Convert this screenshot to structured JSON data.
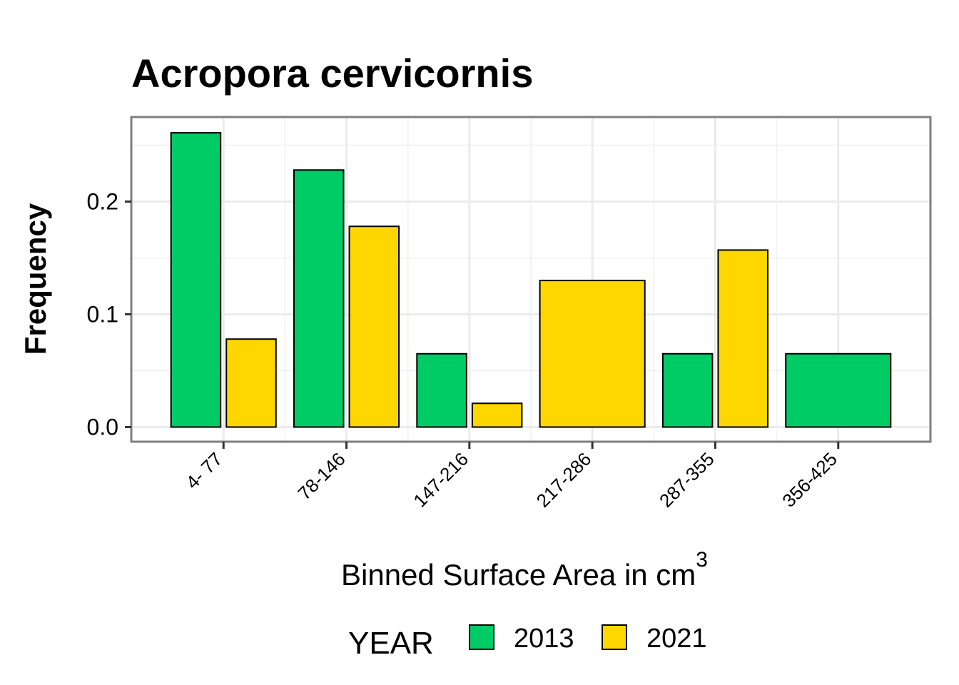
{
  "chart_data": {
    "type": "bar",
    "title": "Acropora cervicornis",
    "xlabel": "Binned Surface Area in cm",
    "xlabel_superscript": "3",
    "ylabel": "Frequency",
    "ylim": [
      -0.013,
      0.275
    ],
    "yticks": [
      0.0,
      0.1,
      0.2
    ],
    "ytick_labels": [
      "0.0",
      "0.1",
      "0.2"
    ],
    "grid": true,
    "legend_title": "YEAR",
    "legend_position": "bottom",
    "categories": [
      "4- 77",
      "78-146",
      "147-216",
      "217-286",
      "287-355",
      "356-425"
    ],
    "series": [
      {
        "name": "2013",
        "color": "#00CC66",
        "values": [
          0.261,
          0.228,
          0.065,
          null,
          0.065,
          0.065
        ]
      },
      {
        "name": "2021",
        "color": "#FFD700",
        "values": [
          0.078,
          0.178,
          0.021,
          0.13,
          0.157,
          null
        ]
      }
    ]
  }
}
